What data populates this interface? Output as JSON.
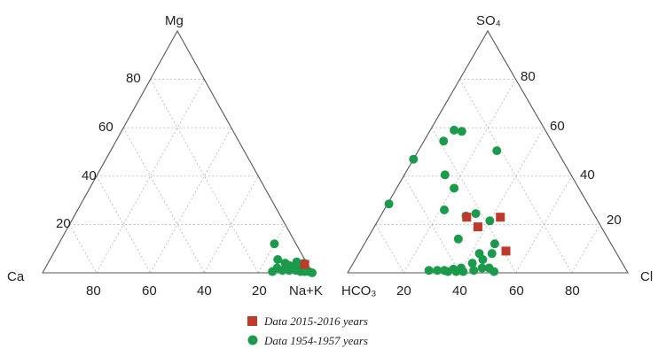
{
  "chart_data": [
    {
      "type": "scatter",
      "name": "cation-ternary",
      "apex_labels": {
        "bottom_left": "Ca",
        "top": "Mg",
        "bottom_right": "Na+K"
      },
      "left_edge_ticks": [
        "20",
        "40",
        "60",
        "80"
      ],
      "bottom_edge_ticks": [
        "80",
        "60",
        "40",
        "20"
      ],
      "grid": true,
      "series": [
        {
          "key": "recent",
          "marker": "square",
          "color": "#c0392b",
          "points": [
            {
              "na_k": 95.5,
              "mg": 3.5
            }
          ]
        },
        {
          "key": "historic",
          "marker": "circle",
          "color": "#1a9a4a",
          "points": [
            {
              "na_k": 80.0,
              "mg": 12.0
            },
            {
              "na_k": 84.5,
              "mg": 5.5
            },
            {
              "na_k": 85.0,
              "mg": 0.5
            },
            {
              "na_k": 86.0,
              "mg": 2.0
            },
            {
              "na_k": 88.0,
              "mg": 4.0
            },
            {
              "na_k": 88.5,
              "mg": 1.0
            },
            {
              "na_k": 90.0,
              "mg": 3.0
            },
            {
              "na_k": 91.0,
              "mg": 1.0
            },
            {
              "na_k": 92.0,
              "mg": 4.5
            },
            {
              "na_k": 93.0,
              "mg": 3.0
            },
            {
              "na_k": 93.5,
              "mg": 1.0
            },
            {
              "na_k": 95.0,
              "mg": 4.0
            },
            {
              "na_k": 95.5,
              "mg": 0.5
            },
            {
              "na_k": 96.5,
              "mg": 2.0
            },
            {
              "na_k": 97.0,
              "mg": 0.5
            },
            {
              "na_k": 98.5,
              "mg": 0.5
            },
            {
              "na_k": 100.0,
              "mg": 0.0
            }
          ]
        }
      ]
    },
    {
      "type": "scatter",
      "name": "anion-ternary",
      "apex_labels": {
        "bottom_left": "HCO₃",
        "top": "SO₄",
        "bottom_right": "Cl"
      },
      "right_edge_ticks": [
        "20",
        "40",
        "60",
        "80"
      ],
      "bottom_edge_ticks": [
        "20",
        "40",
        "60",
        "80"
      ],
      "grid": true,
      "series": [
        {
          "key": "recent",
          "marker": "square",
          "color": "#c0392b",
          "points": [
            {
              "cl": 31.0,
              "so4": 23.0
            },
            {
              "cl": 43.0,
              "so4": 23.0
            },
            {
              "cl": 37.0,
              "so4": 19.0
            },
            {
              "cl": 52.0,
              "so4": 9.0
            }
          ]
        },
        {
          "key": "historic",
          "marker": "circle",
          "color": "#1a9a4a",
          "points": [
            {
              "cl": 0.5,
              "so4": 28.5
            },
            {
              "cl": 0.0,
              "so4": 47.0
            },
            {
              "cl": 7.0,
              "so4": 54.5
            },
            {
              "cl": 8.5,
              "so4": 59.0
            },
            {
              "cl": 11.5,
              "so4": 58.5
            },
            {
              "cl": 14.5,
              "so4": 40.5
            },
            {
              "cl": 20.5,
              "so4": 35.0
            },
            {
              "cl": 21.5,
              "so4": 26.0
            },
            {
              "cl": 28.0,
              "so4": 50.5
            },
            {
              "cl": 30.5,
              "so4": 23.5
            },
            {
              "cl": 33.5,
              "so4": 24.5
            },
            {
              "cl": 40.0,
              "so4": 21.5
            },
            {
              "cl": 32.5,
              "so4": 14.0
            },
            {
              "cl": 28.5,
              "so4": 1.0
            },
            {
              "cl": 31.5,
              "so4": 1.0
            },
            {
              "cl": 34.0,
              "so4": 1.0
            },
            {
              "cl": 35.5,
              "so4": 0.5
            },
            {
              "cl": 38.5,
              "so4": 0.5
            },
            {
              "cl": 41.0,
              "so4": 0.5
            },
            {
              "cl": 42.5,
              "so4": 4.0
            },
            {
              "cl": 43.0,
              "so4": 8.0
            },
            {
              "cl": 44.5,
              "so4": 1.0
            },
            {
              "cl": 45.5,
              "so4": 5.5
            },
            {
              "cl": 46.5,
              "so4": 12.0
            },
            {
              "cl": 47.0,
              "so4": 2.0
            },
            {
              "cl": 47.5,
              "so4": 8.0
            },
            {
              "cl": 49.5,
              "so4": 2.0
            },
            {
              "cl": 52.0,
              "so4": 0.5
            },
            {
              "cl": 37.0,
              "so4": 1.5
            },
            {
              "cl": 39.5,
              "so4": 2.0
            }
          ]
        }
      ]
    }
  ],
  "legend": {
    "entries": [
      {
        "key": "recent",
        "label": "Data 2015-2016 years",
        "marker": "square",
        "color": "#c0392b"
      },
      {
        "key": "historic",
        "label": "Data 1954-1957 years",
        "marker": "circle",
        "color": "#1a9a4a"
      }
    ]
  }
}
